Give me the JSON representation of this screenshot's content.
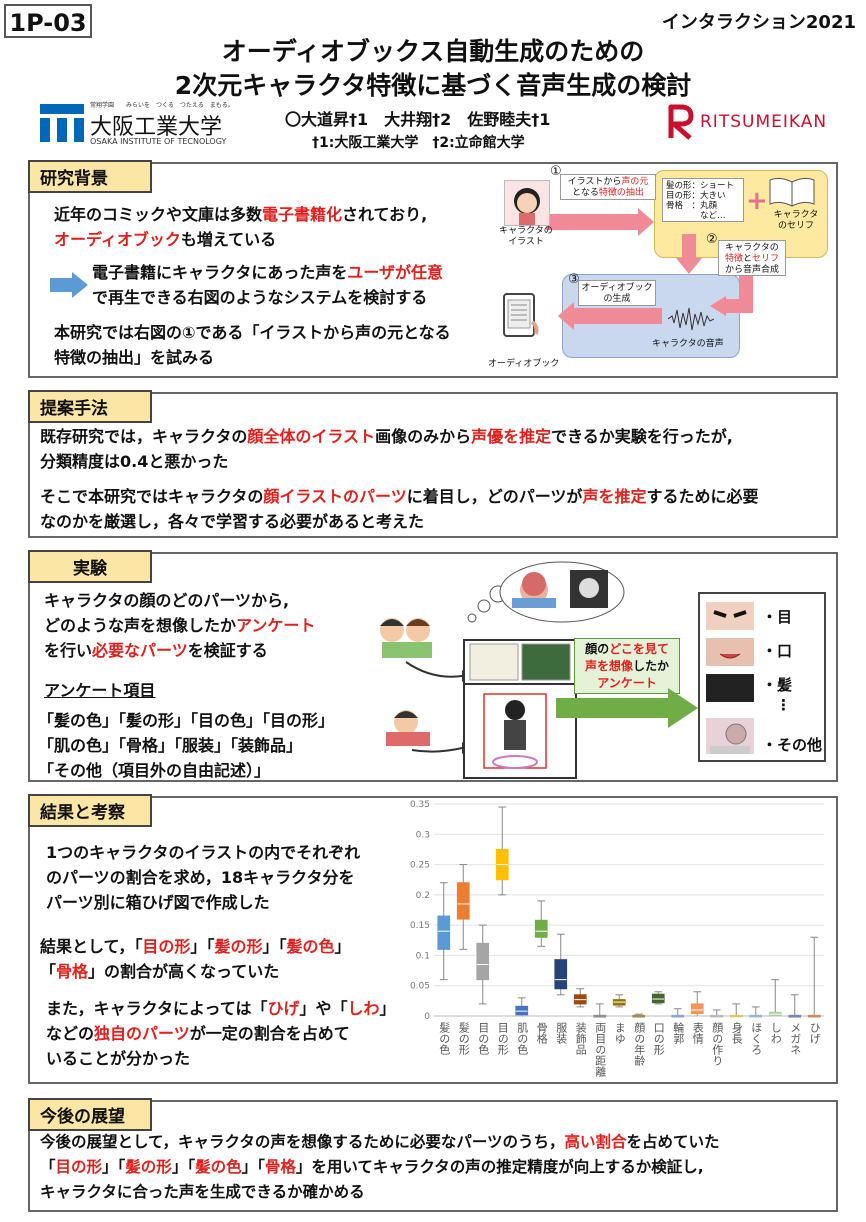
{
  "header": {
    "id": "1P-03",
    "conference": "インタラクション2021",
    "title_line1": "オーディオブックス自動生成のための",
    "title_line2": "2次元キャラクタ特徴に基づく音声生成の検討",
    "authors": "〇大道昇†1　大井翔†2　佐野睦夫†1",
    "affiliations": "†1:大阪工業大学　†2:立命館大学",
    "logo_left_small": "常翔学園　　みらいを　つくる　つたえる　まもる。",
    "logo_left_main": "大阪工業大学",
    "logo_left_en": "OSAKA INSTITUTE OF TECNOLOGY",
    "logo_right": "RITSUMEIKAN"
  },
  "sec1": {
    "label": "研究背景",
    "p1a": "近年のコミックや文庫は多数",
    "p1b": "電子書籍化",
    "p1c": "されており,",
    "p1d": "オーディオブック",
    "p1e": "も増えている",
    "p2a": "電子書籍にキャラクタにあった声を",
    "p2b": "ユーザが任意",
    "p2c": "で再生できる右図のようなシステムを検討する",
    "p3a": "本研究では右図の①である「イラストから声の元となる",
    "p3b": "特徴の抽出」を試みる",
    "d_n1": "①",
    "d_n2": "②",
    "d_n3": "③",
    "d_step1a": "イラストから",
    "d_step1b": "声の元",
    "d_step1c": "となる",
    "d_step1d": "特徴の抽出",
    "d_illust": "キャラクタの\nイラスト",
    "d_feat": "髪の形：ショート\n目の形：大きい\n骨格　：丸顔\n　　　　など…",
    "d_plus": "+",
    "d_serif": "キャラクタ\nのセリフ",
    "d_step2a": "キャラクタの",
    "d_step2b": "特徴",
    "d_step2c": "と",
    "d_step2d": "セリフ",
    "d_step2e": "から音声合成",
    "d_step3": "オーディオブック\nの生成",
    "d_voice": "キャラクタの音声",
    "d_audiobook": "オーディオブック"
  },
  "sec2": {
    "label": "提案手法",
    "l1a": "既存研究では，キャラクタの",
    "l1b": "顔全体のイラスト",
    "l1c": "画像のみから",
    "l1d": "声優を推定",
    "l1e": "できるか実験を行ったが,",
    "l2": "分類精度は0.4と悪かった",
    "l3a": "そこで本研究ではキャラクタの",
    "l3b": "顔イラストのパーツ",
    "l3c": "に着目し，どのパーツが",
    "l3d": "声を推定",
    "l3e": "するために必要",
    "l4": "なのかを厳選し，各々で学習する必要があると考えた"
  },
  "sec3": {
    "label": "実験",
    "p1": "キャラクタの顔のどのパーツから,",
    "p2a": "どのような声を想像したか",
    "p2b": "アンケート",
    "p3a": "を行い",
    "p3b": "必要なパーツ",
    "p3c": "を検証する",
    "items_title": "アンケート項目",
    "items1": "「髪の色」「髪の形」「目の色」「目の形」",
    "items2": "「肌の色」「骨格」「服装」「装飾品」",
    "items3": "「その他（項目外の自由記述）」",
    "survey_a": "顔の",
    "survey_b": "どこを見て",
    "survey_c": "声を想像",
    "survey_d": "したか",
    "survey_e": "アンケート",
    "parts": [
      "・目",
      "・口",
      "・髪",
      "⋮",
      "・その他"
    ]
  },
  "sec4": {
    "label": "結果と考察",
    "p1": "1つのキャラクタのイラストの内でそれぞれ",
    "p2": "のパーツの割合を求め，18キャラクタ分を",
    "p3": "パーツ別に箱ひげ図で作成した",
    "p4a": "結果として，「",
    "p4b": "目の形",
    "p4c": "」「",
    "p4d": "髪の形",
    "p4e": "」「",
    "p4f": "髪の色",
    "p4g": "」",
    "p5a": "「",
    "p5b": "骨格",
    "p5c": "」の割合が高くなっていた",
    "p6a": "また，キャラクタによっては「",
    "p6b": "ひげ",
    "p6c": "」や「",
    "p6d": "しわ",
    "p6e": "」",
    "p7a": "などの",
    "p7b": "独自のパーツ",
    "p7c": "が一定の割合を占めて",
    "p8": "いることが分かった"
  },
  "sec5": {
    "label": "今後の展望",
    "l1a": "今後の展望として，キャラクタの声を想像するために必要なパーツのうち，",
    "l1b": "高い割合",
    "l1c": "を占めていた",
    "l2a": "「",
    "l2b": "目の形",
    "l2c": "」「",
    "l2d": "髪の形",
    "l2e": "」「",
    "l2f": "髪の色",
    "l2g": "」「",
    "l2h": "骨格",
    "l2i": "」を用いてキャラクタの声の推定精度が向上するか検証し,",
    "l3": "キャラクタに合った声を生成できるか確かめる"
  },
  "chart_data": {
    "type": "box",
    "ylim": [
      0,
      0.35
    ],
    "yticks": [
      "0",
      "0.05",
      "0.1",
      "0.15",
      "0.2",
      "0.25",
      "0.3",
      "0.35"
    ],
    "categories": [
      "髪の色",
      "髪の形",
      "目の色",
      "目の形",
      "肌の色",
      "骨格",
      "服装",
      "装飾品",
      "両目の距離",
      "まゆ",
      "顔の年齢",
      "口の形",
      "輪郭",
      "表情",
      "顔の作り",
      "身長",
      "ほくろ",
      "しわ",
      "メガネ",
      "ひげ"
    ],
    "colors": [
      "#5b9bd5",
      "#ed7d31",
      "#a5a5a5",
      "#ffc000",
      "#4472c4",
      "#70ad47",
      "#264478",
      "#9e480e",
      "#636363",
      "#997300",
      "#7f6000",
      "#43682b",
      "#698ed0",
      "#f1975a",
      "#b7b7b7",
      "#ffcd33",
      "#7cafdd",
      "#a9d18e",
      "#335aa1",
      "#d26012"
    ],
    "boxes": [
      {
        "min": 0.06,
        "q1": 0.11,
        "med": 0.14,
        "q3": 0.165,
        "max": 0.22
      },
      {
        "min": 0.11,
        "q1": 0.16,
        "med": 0.185,
        "q3": 0.22,
        "max": 0.25
      },
      {
        "min": 0.02,
        "q1": 0.06,
        "med": 0.085,
        "q3": 0.12,
        "max": 0.15
      },
      {
        "min": 0.2,
        "q1": 0.225,
        "med": 0.25,
        "q3": 0.275,
        "max": 0.345
      },
      {
        "min": 0,
        "q1": 0.002,
        "med": 0.008,
        "q3": 0.016,
        "max": 0.03
      },
      {
        "min": 0.115,
        "q1": 0.13,
        "med": 0.14,
        "q3": 0.158,
        "max": 0.19
      },
      {
        "min": 0.035,
        "q1": 0.045,
        "med": 0.06,
        "q3": 0.093,
        "max": 0.135
      },
      {
        "min": 0.015,
        "q1": 0.02,
        "med": 0.027,
        "q3": 0.035,
        "max": 0.045
      },
      {
        "min": 0,
        "q1": 0,
        "med": 0,
        "q3": 0.001,
        "max": 0.02
      },
      {
        "min": 0.015,
        "q1": 0.018,
        "med": 0.023,
        "q3": 0.027,
        "max": 0.035
      },
      {
        "min": 0,
        "q1": 0,
        "med": 0,
        "q3": 0.001,
        "max": 0.003
      },
      {
        "min": 0.02,
        "q1": 0.022,
        "med": 0.028,
        "q3": 0.036,
        "max": 0.04
      },
      {
        "min": 0,
        "q1": 0,
        "med": 0,
        "q3": 0.001,
        "max": 0.012
      },
      {
        "min": 0,
        "q1": 0.004,
        "med": 0.01,
        "q3": 0.02,
        "max": 0.04
      },
      {
        "min": 0,
        "q1": 0,
        "med": 0,
        "q3": 0.001,
        "max": 0.01
      },
      {
        "min": 0,
        "q1": 0,
        "med": 0,
        "q3": 0.001,
        "max": 0.02
      },
      {
        "min": 0,
        "q1": 0,
        "med": 0,
        "q3": 0.001,
        "max": 0.015
      },
      {
        "min": 0,
        "q1": 0.001,
        "med": 0.003,
        "q3": 0.006,
        "max": 0.06
      },
      {
        "min": 0,
        "q1": 0,
        "med": 0,
        "q3": 0.001,
        "max": 0.035
      },
      {
        "min": 0,
        "q1": 0,
        "med": 0,
        "q3": 0.001,
        "max": 0.13
      }
    ]
  }
}
